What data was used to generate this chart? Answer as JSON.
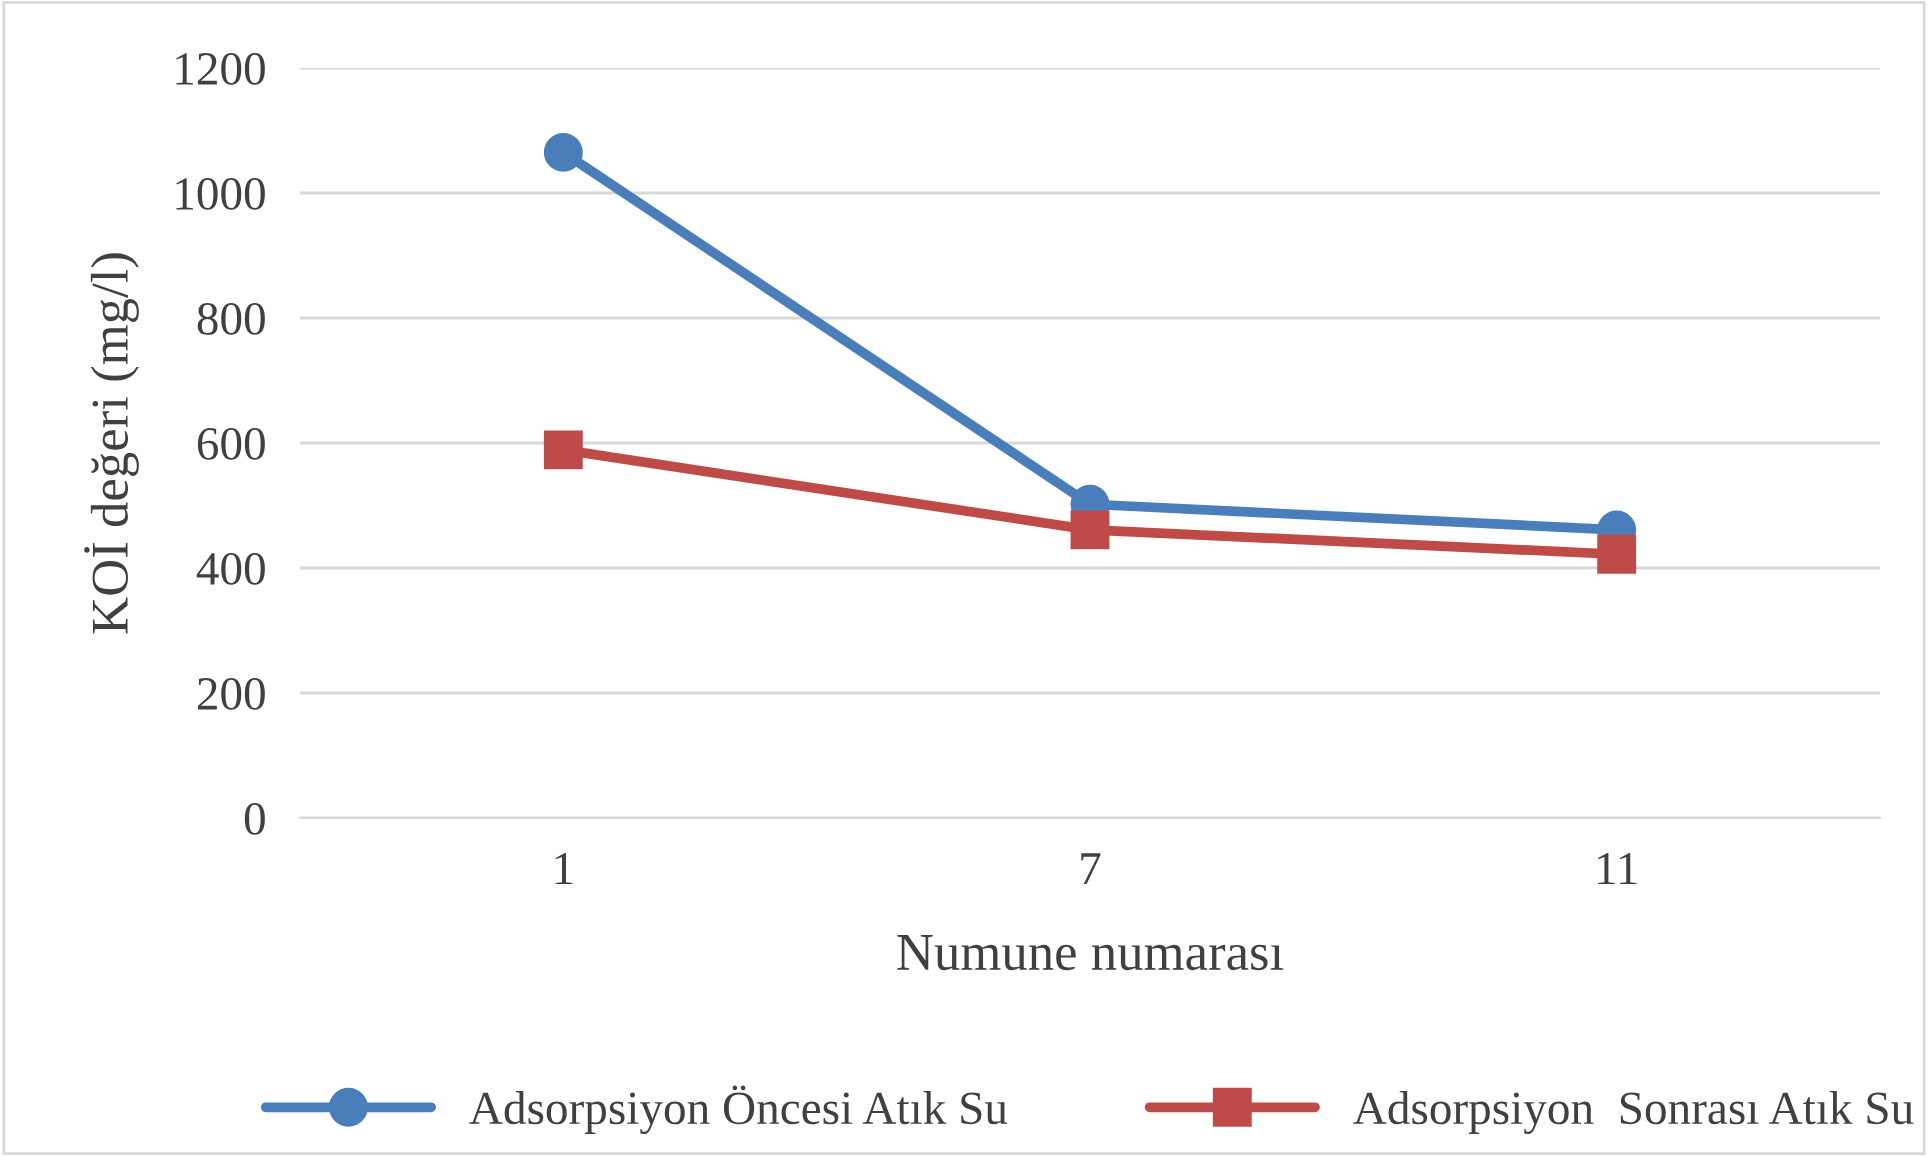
{
  "chart_data": {
    "type": "line",
    "xlabel": "Numune numarası",
    "ylabel": "KOİ değeri (mg/l)",
    "categories": [
      "1",
      "7",
      "11"
    ],
    "series": [
      {
        "name": "Adsorpsiyon Öncesi Atık Su",
        "color": "#4a7ebb",
        "values": [
          1065,
          502,
          461
        ],
        "marker": "circle"
      },
      {
        "name": "Adsorpsiyon  Sonrası Atık Su",
        "color": "#be4b48",
        "values": [
          589,
          461,
          422
        ],
        "marker": "square"
      }
    ],
    "ylim": [
      0,
      1200
    ],
    "yticks": [
      0,
      200,
      400,
      600,
      800,
      1000,
      1200
    ],
    "grid": "y",
    "legend": "bottom",
    "line_style": "solid"
  }
}
